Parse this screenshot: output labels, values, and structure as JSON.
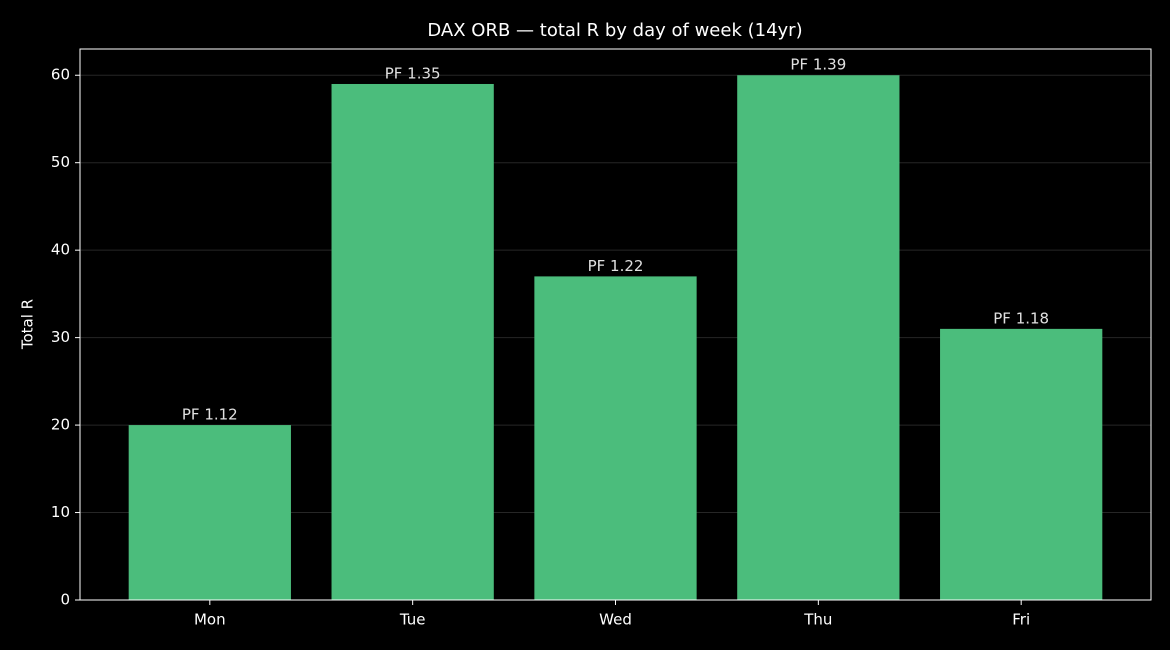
{
  "chart_data": {
    "type": "bar",
    "title": "DAX ORB — total R by day of week (14yr)",
    "y_label": "Total R",
    "categories": [
      "Mon",
      "Tue",
      "Wed",
      "Thu",
      "Fri"
    ],
    "values": [
      20,
      59,
      37,
      60,
      31
    ],
    "bar_labels": [
      "PF 1.12",
      "PF 1.35",
      "PF 1.22",
      "PF 1.39",
      "PF 1.18"
    ],
    "color": "#4bbd7c",
    "ylim": [
      0,
      63
    ],
    "yticks": [
      0,
      10,
      20,
      30,
      40,
      50,
      60
    ],
    "grid": true
  }
}
